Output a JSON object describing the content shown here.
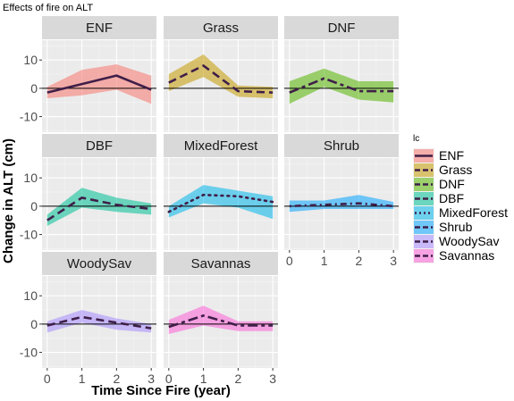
{
  "chart_data": {
    "type": "line",
    "title": "Effects of fire on ALT",
    "xlabel": "Time Since Fire (year)",
    "ylabel": "Change in ALT (cm)",
    "x_ticks": [
      "0",
      "1",
      "2",
      "3"
    ],
    "y_ticks": [
      "10",
      "0",
      "-10"
    ],
    "xlim": [
      -0.15,
      3.15
    ],
    "ylim": [
      -15.5,
      17
    ],
    "grid": true,
    "legend_title": "lc",
    "legend_position": "right",
    "x": [
      0,
      1,
      2,
      3
    ],
    "panels": [
      {
        "name": "ENF",
        "color": "#F8766D",
        "dash": "solid",
        "values": [
          -1.5,
          1.5,
          4.5,
          -0.5
        ],
        "lower": [
          -3.5,
          -2.5,
          -0.5,
          -5.5
        ],
        "upper": [
          0.5,
          6.5,
          8.5,
          4.5
        ]
      },
      {
        "name": "Grass",
        "color": "#C49A00",
        "dash": "long-dash",
        "values": [
          2,
          8,
          -1,
          -1.5
        ],
        "lower": [
          -1,
          4,
          -3,
          -3.5
        ],
        "upper": [
          5,
          12,
          1,
          0.5
        ]
      },
      {
        "name": "DNF",
        "color": "#53B400",
        "dash": "two-dash",
        "values": [
          -1.5,
          3.5,
          -1,
          -1
        ],
        "lower": [
          -5.5,
          0.5,
          -4,
          -5
        ],
        "upper": [
          2.5,
          7,
          2.5,
          2.5
        ]
      },
      {
        "name": "DBF",
        "color": "#00C094",
        "dash": "long-dash",
        "values": [
          -5,
          3,
          0.5,
          -1
        ],
        "lower": [
          -7,
          -0.5,
          -2,
          -3
        ],
        "upper": [
          -3,
          6.5,
          3,
          1
        ]
      },
      {
        "name": "MixedForest",
        "color": "#00B6EB",
        "dash": "dotted",
        "values": [
          -2,
          4,
          3.5,
          1.5
        ],
        "lower": [
          -4,
          1,
          -0.5,
          -4.5
        ],
        "upper": [
          0,
          7.5,
          5.5,
          3.5
        ]
      },
      {
        "name": "Shrub",
        "color": "#06A4FF",
        "dash": "dot-dash",
        "values": [
          0,
          0.5,
          1,
          0
        ],
        "lower": [
          -2,
          -1,
          -1,
          -1
        ],
        "upper": [
          2,
          2,
          4,
          1.5
        ]
      },
      {
        "name": "WoodySav",
        "color": "#A58AFF",
        "dash": "long-dash",
        "values": [
          -0.5,
          2.5,
          0.5,
          -1.5
        ],
        "lower": [
          -3,
          0.5,
          -2,
          -3
        ],
        "upper": [
          1,
          5,
          2,
          0
        ]
      },
      {
        "name": "Savannas",
        "color": "#FB61D7",
        "dash": "two-dash",
        "values": [
          -1,
          3,
          -0.5,
          -0.5
        ],
        "lower": [
          -3.5,
          -0.5,
          -2.5,
          -2.5
        ],
        "upper": [
          1.5,
          6.5,
          1,
          1
        ]
      }
    ]
  }
}
